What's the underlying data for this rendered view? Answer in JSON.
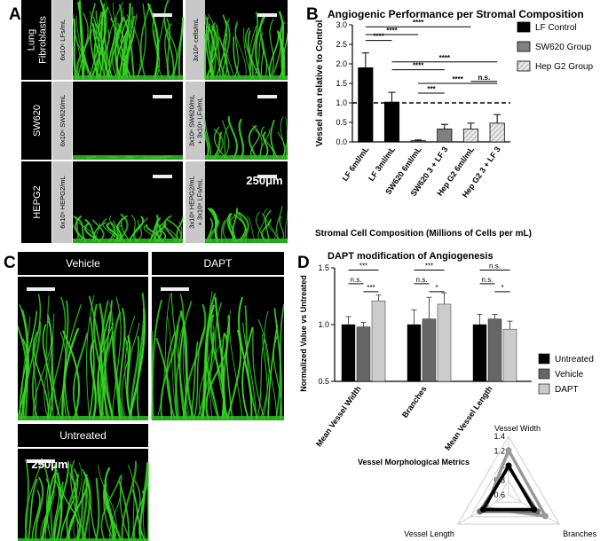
{
  "panel_letters": {
    "a": "A",
    "b": "B",
    "c": "C",
    "d": "D"
  },
  "panel_a": {
    "row_labels": [
      "Lung\nFibroblasts",
      "SW620",
      "HEPG2"
    ],
    "cells": [
      [
        "6x10⁶ LFs/mL",
        "3x10⁶ cells/mL"
      ],
      [
        "6x10⁶ SW620/mL",
        "3x10⁶ SW620/mL\n+ 3x10⁶ LFs/mL"
      ],
      [
        "6x10⁶ HEPG2/mL",
        "3x10⁶ HEPG2/mL\n+ 3x10⁶ LFs/mL"
      ]
    ],
    "scale_text": "250μm"
  },
  "panel_c": {
    "labels": [
      "Vehicle",
      "DAPT",
      "Untreated"
    ],
    "scale_text": "250μm"
  },
  "chart_data": [
    {
      "type": "bar",
      "title": "Angiogenic Performance per Stromal  Composition",
      "xlabel": "Stromal  Cell Composition (Millions of  Cells per mL)",
      "ylabel": "Vessel area relative to Control",
      "categories": [
        "LF 6ml/mL",
        "LF 3ml/mL",
        "SW620 6ml/mL",
        "SW620 3 + LF 3",
        "Hep G2 6ml/mL",
        "Hep G2 3 + LF 3"
      ],
      "values": [
        1.9,
        1.02,
        0.03,
        0.33,
        0.33,
        0.48
      ],
      "errors": [
        0.38,
        0.25,
        0.02,
        0.12,
        0.15,
        0.22
      ],
      "bar_groups": [
        "LF Control",
        "LF Control",
        "SW620 Group",
        "SW620 Group",
        "Hep G2 Group",
        "Hep G2 Group"
      ],
      "legend": [
        "LF Control",
        "SW620 Group",
        "Hep G2 Group"
      ],
      "reference_line": 1.0,
      "ylim": [
        0,
        3
      ],
      "significance": [
        {
          "from": 0,
          "to": 1,
          "label": "****"
        },
        {
          "from": 0,
          "to": 2,
          "label": "****"
        },
        {
          "from": 0,
          "to": 4,
          "label": "****"
        },
        {
          "from": 1,
          "to": 5,
          "label": "****"
        },
        {
          "from": 1,
          "to": 3,
          "label": "****"
        },
        {
          "from": 2,
          "to": 3,
          "label": "***"
        },
        {
          "from": 2,
          "to": 5,
          "label": "****"
        },
        {
          "from": 4,
          "to": 5,
          "label": "n.s."
        }
      ],
      "colors": {
        "LF Control": "#000000",
        "SW620 Group": "#808080",
        "Hep G2 Group": "#e6e6e6"
      }
    },
    {
      "type": "bar",
      "title": "DAPT modification of  Angiogenesis",
      "ylabel": "Normalized Value vs Untreated",
      "categories": [
        "Mean Vessel Width",
        "Branches",
        "Mean Vessel Length"
      ],
      "series": [
        {
          "name": "Untreated",
          "values": [
            1.0,
            1.0,
            1.0
          ],
          "errors": [
            0.07,
            0.13,
            0.09
          ]
        },
        {
          "name": "Vehicle",
          "values": [
            0.98,
            1.05,
            1.05
          ],
          "errors": [
            0.04,
            0.19,
            0.04
          ]
        },
        {
          "name": "DAPT",
          "values": [
            1.21,
            1.18,
            0.96
          ],
          "errors": [
            0.05,
            0.1,
            0.07
          ]
        }
      ],
      "ylim": [
        0.5,
        1.5
      ],
      "yticks": [
        "0.5",
        "1.0",
        "1.5"
      ],
      "significance": [
        {
          "group": 0,
          "from": 0,
          "to": 2,
          "label": "***"
        },
        {
          "group": 0,
          "from": 0,
          "to": 1,
          "label": "n.s."
        },
        {
          "group": 0,
          "from": 1,
          "to": 2,
          "label": "***"
        },
        {
          "group": 1,
          "from": 0,
          "to": 2,
          "label": "***"
        },
        {
          "group": 1,
          "from": 0,
          "to": 1,
          "label": "n.s."
        },
        {
          "group": 1,
          "from": 1,
          "to": 2,
          "label": "*"
        },
        {
          "group": 2,
          "from": 0,
          "to": 2,
          "label": "n.s."
        },
        {
          "group": 2,
          "from": 0,
          "to": 1,
          "label": "n.s."
        },
        {
          "group": 2,
          "from": 1,
          "to": 2,
          "label": "*"
        }
      ],
      "colors": {
        "Untreated": "#000000",
        "Vehicle": "#666666",
        "DAPT": "#cccccc"
      }
    },
    {
      "type": "radar",
      "title": "Vessel Morphological Metrics",
      "axes": [
        "Vessel Width",
        "Branches",
        "Vessel Length"
      ],
      "rlim": [
        0.6,
        1.4
      ],
      "ticks": [
        "0.6",
        "0.8",
        "1",
        "1.2",
        "1.4"
      ],
      "series": [
        {
          "name": "Untreated",
          "values": [
            1.0,
            1.0,
            1.0
          ],
          "color": "#000000"
        },
        {
          "name": "Vehicle",
          "values": [
            0.98,
            1.05,
            1.05
          ],
          "color": "#666666"
        },
        {
          "name": "DAPT",
          "values": [
            1.21,
            1.18,
            0.96
          ],
          "color": "#999999"
        }
      ]
    }
  ]
}
